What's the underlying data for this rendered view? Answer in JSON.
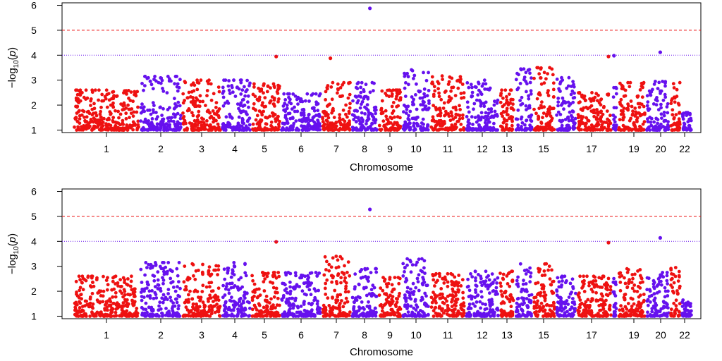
{
  "colors": {
    "odd": "#ee1111",
    "even": "#6611ee",
    "line_high": "#ee1111",
    "line_low": "#6611ee",
    "axis": "#000000"
  },
  "chart_data": [
    {
      "type": "scatter",
      "title": "",
      "xlabel": "Chromosome",
      "ylabel": "-log10(p)",
      "ylabel_parts": {
        "minus": "−",
        "log": "log",
        "sub": "10",
        "open": "(",
        "p": "p",
        "close": ")"
      },
      "ylim": [
        0.9,
        6.1
      ],
      "yticks": [
        "1",
        "2",
        "3",
        "4",
        "5",
        "6"
      ],
      "xticks": [
        "1",
        "2",
        "3",
        "4",
        "5",
        "6",
        "7",
        "8",
        "9",
        "10",
        "11",
        "12",
        "13",
        "15",
        "17",
        "19",
        "20",
        "22"
      ],
      "chromosomes": [
        "1",
        "2",
        "3",
        "4",
        "5",
        "6",
        "7",
        "8",
        "9",
        "10",
        "11",
        "12",
        "13",
        "14",
        "15",
        "16",
        "17",
        "18",
        "19",
        "20",
        "21",
        "22"
      ],
      "thresholds": [
        {
          "value": 5,
          "style": "dashed",
          "color": "red"
        },
        {
          "value": 4,
          "style": "dotted",
          "color": "blue"
        }
      ],
      "seed": 11,
      "ceilings": [
        2.6,
        3.15,
        3.0,
        3.0,
        2.85,
        2.45,
        2.9,
        2.9,
        2.6,
        3.5,
        3.2,
        3.0,
        2.6,
        3.45,
        3.5,
        3.1,
        2.5,
        2.7,
        2.9,
        2.95,
        2.9,
        1.7
      ],
      "highlights": [
        {
          "chr": "5",
          "pos": 0.85,
          "y": 3.95
        },
        {
          "chr": "7",
          "pos": 0.3,
          "y": 3.88
        },
        {
          "chr": "8",
          "pos": 0.7,
          "y": 5.88
        },
        {
          "chr": "17",
          "pos": 0.9,
          "y": 3.95
        },
        {
          "chr": "18",
          "pos": 0.35,
          "y": 3.98
        },
        {
          "chr": "20",
          "pos": 0.6,
          "y": 4.12
        }
      ]
    },
    {
      "type": "scatter",
      "title": "",
      "xlabel": "Chromosome",
      "ylabel": "-log10(p)",
      "ylabel_parts": {
        "minus": "−",
        "log": "log",
        "sub": "10",
        "open": "(",
        "p": "p",
        "close": ")"
      },
      "ylim": [
        0.9,
        6.1
      ],
      "yticks": [
        "1",
        "2",
        "3",
        "4",
        "5",
        "6"
      ],
      "xticks": [
        "1",
        "2",
        "3",
        "4",
        "5",
        "6",
        "7",
        "8",
        "9",
        "10",
        "11",
        "12",
        "13",
        "15",
        "17",
        "19",
        "20",
        "22"
      ],
      "chromosomes": [
        "1",
        "2",
        "3",
        "4",
        "5",
        "6",
        "7",
        "8",
        "9",
        "10",
        "11",
        "12",
        "13",
        "14",
        "15",
        "16",
        "17",
        "18",
        "19",
        "20",
        "21",
        "22"
      ],
      "thresholds": [
        {
          "value": 5,
          "style": "dashed",
          "color": "red"
        },
        {
          "value": 4,
          "style": "dotted",
          "color": "blue"
        }
      ],
      "seed": 29,
      "ceilings": [
        2.6,
        3.15,
        3.1,
        3.15,
        2.75,
        2.75,
        3.4,
        2.9,
        2.55,
        3.3,
        2.7,
        2.8,
        2.8,
        3.1,
        3.1,
        2.6,
        2.6,
        2.6,
        2.9,
        2.75,
        2.95,
        1.65
      ],
      "highlights": [
        {
          "chr": "5",
          "pos": 0.85,
          "y": 3.98
        },
        {
          "chr": "8",
          "pos": 0.7,
          "y": 5.28
        },
        {
          "chr": "17",
          "pos": 0.9,
          "y": 3.95
        },
        {
          "chr": "20",
          "pos": 0.6,
          "y": 4.14
        }
      ]
    }
  ]
}
